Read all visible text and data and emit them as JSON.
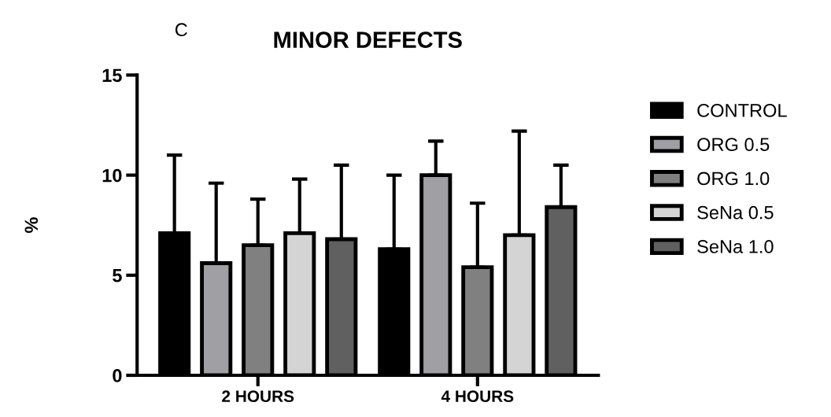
{
  "chart_data": {
    "type": "bar",
    "title": "MINOR DEFECTS",
    "ylabel": "%",
    "annotations": [
      "C"
    ],
    "categories": [
      "2 HOURS",
      "4 HOURS"
    ],
    "series": [
      {
        "name": "CONTROL",
        "color": "#000000",
        "values": [
          7.1,
          6.3
        ],
        "errors": [
          [
            7.1,
            11.0
          ],
          [
            6.3,
            10.0
          ]
        ]
      },
      {
        "name": "ORG 0.5",
        "color": "#a0a0a4",
        "values": [
          5.6,
          10.0
        ],
        "errors": [
          [
            5.6,
            9.6
          ],
          [
            10.0,
            11.7
          ]
        ]
      },
      {
        "name": "ORG 1.0",
        "color": "#808080",
        "values": [
          6.5,
          5.4
        ],
        "errors": [
          [
            6.5,
            8.8
          ],
          [
            5.4,
            8.6
          ]
        ]
      },
      {
        "name": "SeNa 0.5",
        "color": "#d4d4d4",
        "values": [
          7.1,
          7.0
        ],
        "errors": [
          [
            7.1,
            9.8
          ],
          [
            7.0,
            12.2
          ]
        ]
      },
      {
        "name": "SeNa 1.0",
        "color": "#606060",
        "values": [
          6.8,
          8.4
        ],
        "errors": [
          [
            6.8,
            10.5
          ],
          [
            8.4,
            10.5
          ]
        ]
      }
    ],
    "ylim": [
      0,
      15
    ],
    "yticks": [
      0,
      5,
      10,
      15
    ],
    "grid": false,
    "legend": "right"
  }
}
